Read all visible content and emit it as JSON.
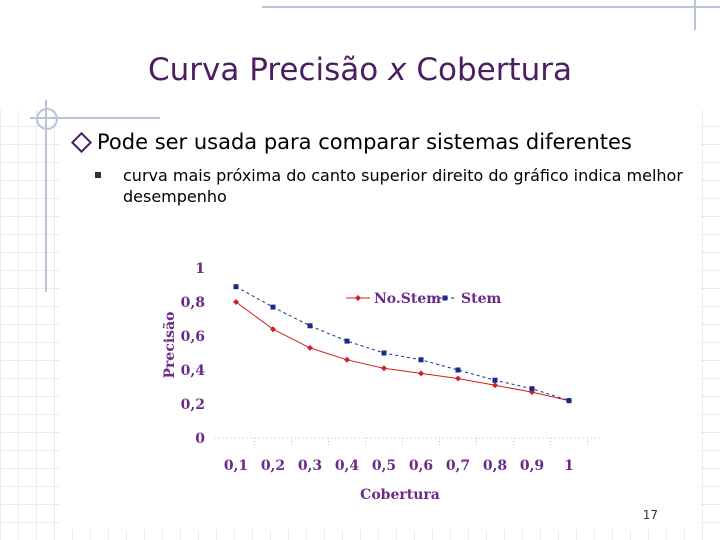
{
  "slide": {
    "title_main": "Curva Precisão",
    "title_x": "x",
    "title_end": "Cobertura",
    "bullet1": "Pode ser usada para comparar sistemas diferentes",
    "bullet2": "curva mais próxima do canto superior direito do gráfico indica melhor desempenho",
    "page_number": "17"
  },
  "colors": {
    "title": "#4b1e62",
    "nostem": "#d32020",
    "stem": "#1a2a8a",
    "tick_labels": "#6b2a86"
  },
  "chart_data": {
    "type": "line",
    "xlabel": "Cobertura",
    "ylabel": "Precisão",
    "categories": [
      "0,1",
      "0,2",
      "0,3",
      "0,4",
      "0,5",
      "0,6",
      "0,7",
      "0,8",
      "0,9",
      "1"
    ],
    "x": [
      0.1,
      0.2,
      0.3,
      0.4,
      0.5,
      0.6,
      0.7,
      0.8,
      0.9,
      1.0
    ],
    "y_ticks": [
      "1",
      "0,8",
      "0,6",
      "0,4",
      "0,2",
      "0"
    ],
    "ylim": [
      0,
      1
    ],
    "legend_position": "top-right",
    "series": [
      {
        "name": "No.Stem",
        "values": [
          0.8,
          0.64,
          0.53,
          0.46,
          0.41,
          0.38,
          0.35,
          0.31,
          0.27,
          0.22
        ]
      },
      {
        "name": "Stem",
        "values": [
          0.89,
          0.77,
          0.66,
          0.57,
          0.5,
          0.46,
          0.4,
          0.34,
          0.29,
          0.22
        ]
      }
    ]
  }
}
